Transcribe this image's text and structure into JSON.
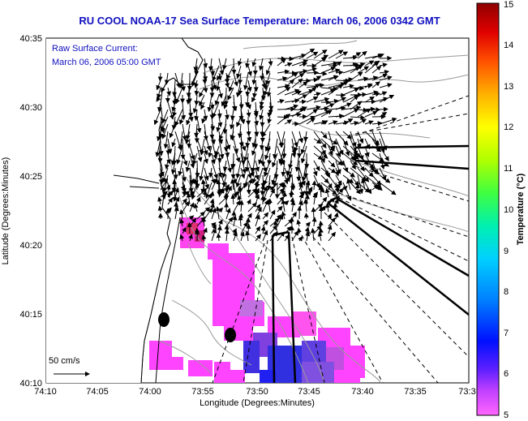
{
  "title": "RU COOL   NOAA-17  Sea Surface Temperature:  March 06, 2006 0342 GMT",
  "inset": {
    "line1": "Raw Surface Current:",
    "line2": "March 06, 2006 05:00 GMT"
  },
  "scale_label": "50 cm/s",
  "xlabel": "Longitude (Degrees:Minutes)",
  "ylabel": "Latitude (Degrees:Minutes)",
  "colorbar_label": "Temperature (°C)",
  "x_ticks": [
    "74:10",
    "74:05",
    "74:00",
    "73:55",
    "73:50",
    "73:45",
    "73:40",
    "73:35",
    "73:3"
  ],
  "y_ticks": [
    "40:35",
    "40:30",
    "40:25",
    "40:20",
    "40:15",
    "40:10"
  ],
  "colorbar_ticks": [
    "15",
    "14",
    "13",
    "12",
    "11",
    "10",
    "9",
    "8",
    "7",
    "6",
    "5"
  ],
  "colors": {
    "title_blue": "#1010c0",
    "sst_magenta": "#ff33ff",
    "sst_purple": "#b040e0",
    "sst_blue": "#3030e0"
  },
  "chart_data": {
    "type": "heatmap",
    "title": "RU COOL   NOAA-17  Sea Surface Temperature:  March 06, 2006 0342 GMT",
    "xlabel": "Longitude (Degrees:Minutes)",
    "ylabel": "Latitude (Degrees:Minutes)",
    "xlim": [
      "74:10",
      "73:30"
    ],
    "ylim": [
      "40:10",
      "40:35"
    ],
    "colorbar": {
      "label": "Temperature (°C)",
      "range": [
        5,
        15
      ]
    },
    "observed_sst_range_c": [
      5,
      6.5
    ]
  }
}
